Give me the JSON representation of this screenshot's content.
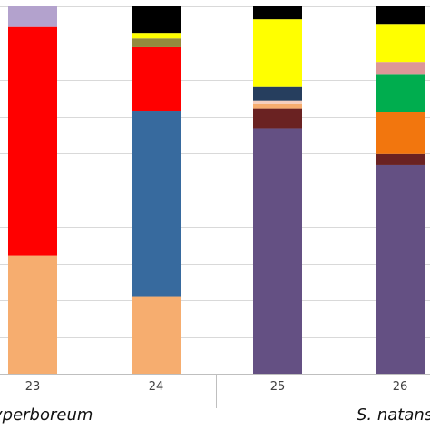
{
  "chart_data": {
    "type": "bar",
    "stacked": true,
    "grid": true,
    "ylim": [
      0,
      100
    ],
    "categories": [
      "23",
      "24",
      "25",
      "26"
    ],
    "groups": [
      {
        "label": "yperboreum",
        "categories": [
          "23",
          "24"
        ]
      },
      {
        "label": "S. natans",
        "categories": [
          "25",
          "26"
        ]
      }
    ],
    "stacks": [
      {
        "category": "23",
        "segments": [
          {
            "color": "#F6AD6F",
            "value": 32.2
          },
          {
            "color": "#FF0000",
            "value": 62.2
          },
          {
            "color": "#B3A2CD",
            "value": 5.6
          }
        ]
      },
      {
        "category": "24",
        "segments": [
          {
            "color": "#F6AD6F",
            "value": 21.1
          },
          {
            "color": "#376A9E",
            "value": 50.5
          },
          {
            "color": "#FF0000",
            "value": 17.3
          },
          {
            "color": "#948A3D",
            "value": 2.4
          },
          {
            "color": "#FFFF00",
            "value": 1.5
          },
          {
            "color": "#000000",
            "value": 7.2
          }
        ]
      },
      {
        "category": "25",
        "segments": [
          {
            "color": "#645083",
            "value": 66.8
          },
          {
            "color": "#6A2222",
            "value": 5.4
          },
          {
            "color": "#F6AD6F",
            "value": 1.2
          },
          {
            "color": "#F4CFC0",
            "value": 1.0
          },
          {
            "color": "#263E5E",
            "value": 3.7
          },
          {
            "color": "#FFFF00",
            "value": 18.4
          },
          {
            "color": "#000000",
            "value": 3.5
          }
        ]
      },
      {
        "category": "26",
        "segments": [
          {
            "color": "#645083",
            "value": 56.8
          },
          {
            "color": "#6A2222",
            "value": 3.0
          },
          {
            "color": "#F2760E",
            "value": 11.5
          },
          {
            "color": "#00AD4E",
            "value": 10.1
          },
          {
            "color": "#DD9797",
            "value": 3.5
          },
          {
            "color": "#FFFF00",
            "value": 10.1
          },
          {
            "color": "#000000",
            "value": 5.0
          }
        ]
      }
    ]
  }
}
